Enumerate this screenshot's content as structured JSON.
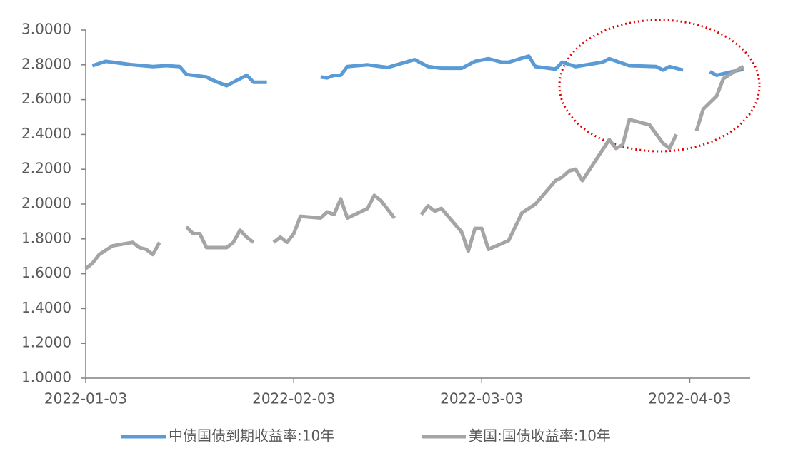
{
  "chart_data": {
    "type": "line",
    "xlim": [
      "2022-01-03",
      "2022-04-12"
    ],
    "xticks": [
      "2022-01-03",
      "2022-02-03",
      "2022-03-03",
      "2022-04-03"
    ],
    "ylim": [
      1,
      3
    ],
    "yticks": [
      {
        "value": 1,
        "label": "1.0000"
      },
      {
        "value": 1.2,
        "label": "1.2000"
      },
      {
        "value": 1.4,
        "label": "1.4000"
      },
      {
        "value": 1.6,
        "label": "1.6000"
      },
      {
        "value": 1.8,
        "label": "1.8000"
      },
      {
        "value": 2,
        "label": "2.0000"
      },
      {
        "value": 2.2,
        "label": "2.2000"
      },
      {
        "value": 2.4,
        "label": "2.4000"
      },
      {
        "value": 2.6,
        "label": "2.6000"
      },
      {
        "value": 2.8,
        "label": "2.8000"
      },
      {
        "value": 3,
        "label": "3.0000"
      }
    ],
    "grid": false,
    "legend": "bottom",
    "series": [
      {
        "name": "中债国债到期收益率:10年",
        "color": "#5b9bd5",
        "x": [
          "2022-01-04",
          "2022-01-06",
          "2022-01-08",
          "2022-01-10",
          "2022-01-13",
          "2022-01-15",
          "2022-01-17",
          "2022-01-18",
          "2022-01-21",
          "2022-01-22",
          "2022-01-24",
          "2022-01-27",
          "2022-01-28",
          "2022-01-30",
          "2022-02-01",
          "2022-02-07",
          "2022-02-08",
          "2022-02-09",
          "2022-02-10",
          "2022-02-11",
          "2022-02-14",
          "2022-02-17",
          "2022-02-21",
          "2022-02-23",
          "2022-02-25",
          "2022-02-28",
          "2022-03-02",
          "2022-03-04",
          "2022-03-06",
          "2022-03-07",
          "2022-03-10",
          "2022-03-11",
          "2022-03-14",
          "2022-03-15",
          "2022-03-17",
          "2022-03-21",
          "2022-03-22",
          "2022-03-25",
          "2022-03-29",
          "2022-03-30",
          "2022-03-31",
          "2022-04-02",
          "2022-04-04",
          "2022-04-06",
          "2022-04-07",
          "2022-04-11"
        ],
        "values": [
          2.795,
          2.82,
          2.81,
          2.8,
          2.79,
          2.795,
          2.79,
          2.745,
          2.73,
          2.71,
          2.68,
          2.74,
          2.7,
          2.7,
          null,
          2.73,
          2.725,
          2.74,
          2.74,
          2.79,
          2.8,
          2.785,
          2.83,
          2.79,
          2.78,
          2.78,
          2.82,
          2.835,
          2.815,
          2.815,
          2.85,
          2.79,
          2.775,
          2.815,
          2.79,
          2.815,
          2.835,
          2.795,
          2.79,
          2.77,
          2.79,
          2.77,
          null,
          2.76,
          2.74,
          2.775
        ]
      },
      {
        "name": "美国:国债收益率:10年",
        "color": "#a5a5a5",
        "x": [
          "2022-01-03",
          "2022-01-04",
          "2022-01-05",
          "2022-01-07",
          "2022-01-10",
          "2022-01-11",
          "2022-01-12",
          "2022-01-13",
          "2022-01-14",
          "2022-01-16",
          "2022-01-18",
          "2022-01-19",
          "2022-01-20",
          "2022-01-21",
          "2022-01-24",
          "2022-01-25",
          "2022-01-26",
          "2022-01-27",
          "2022-01-28",
          "2022-01-29",
          "2022-01-31",
          "2022-02-01",
          "2022-02-02",
          "2022-02-03",
          "2022-02-04",
          "2022-02-07",
          "2022-02-08",
          "2022-02-09",
          "2022-02-10",
          "2022-02-11",
          "2022-02-14",
          "2022-02-15",
          "2022-02-16",
          "2022-02-18",
          "2022-02-20",
          "2022-02-22",
          "2022-02-23",
          "2022-02-24",
          "2022-02-25",
          "2022-02-28",
          "2022-03-01",
          "2022-03-02",
          "2022-03-03",
          "2022-03-04",
          "2022-03-07",
          "2022-03-09",
          "2022-03-11",
          "2022-03-14",
          "2022-03-15",
          "2022-03-16",
          "2022-03-17",
          "2022-03-18",
          "2022-03-22",
          "2022-03-23",
          "2022-03-24",
          "2022-03-25",
          "2022-03-28",
          "2022-03-30",
          "2022-03-31",
          "2022-04-01",
          "2022-04-02",
          "2022-04-04",
          "2022-04-05",
          "2022-04-07",
          "2022-04-08",
          "2022-04-10",
          "2022-04-11"
        ],
        "values": [
          1.63,
          1.66,
          1.71,
          1.76,
          1.78,
          1.75,
          1.74,
          1.71,
          1.78,
          null,
          1.87,
          1.83,
          1.83,
          1.75,
          1.75,
          1.78,
          1.85,
          1.81,
          1.78,
          null,
          1.78,
          1.81,
          1.78,
          1.83,
          1.93,
          1.92,
          1.955,
          1.94,
          2.03,
          1.92,
          1.975,
          2.05,
          2.02,
          1.92,
          null,
          1.94,
          1.99,
          1.96,
          1.975,
          1.84,
          1.73,
          1.86,
          1.86,
          1.74,
          1.79,
          1.95,
          2.0,
          2.135,
          2.155,
          2.19,
          2.2,
          2.135,
          2.37,
          2.32,
          2.34,
          2.485,
          2.455,
          2.35,
          2.32,
          2.4,
          null,
          2.42,
          2.545,
          2.62,
          2.72,
          2.77,
          2.79
        ]
      }
    ]
  }
}
